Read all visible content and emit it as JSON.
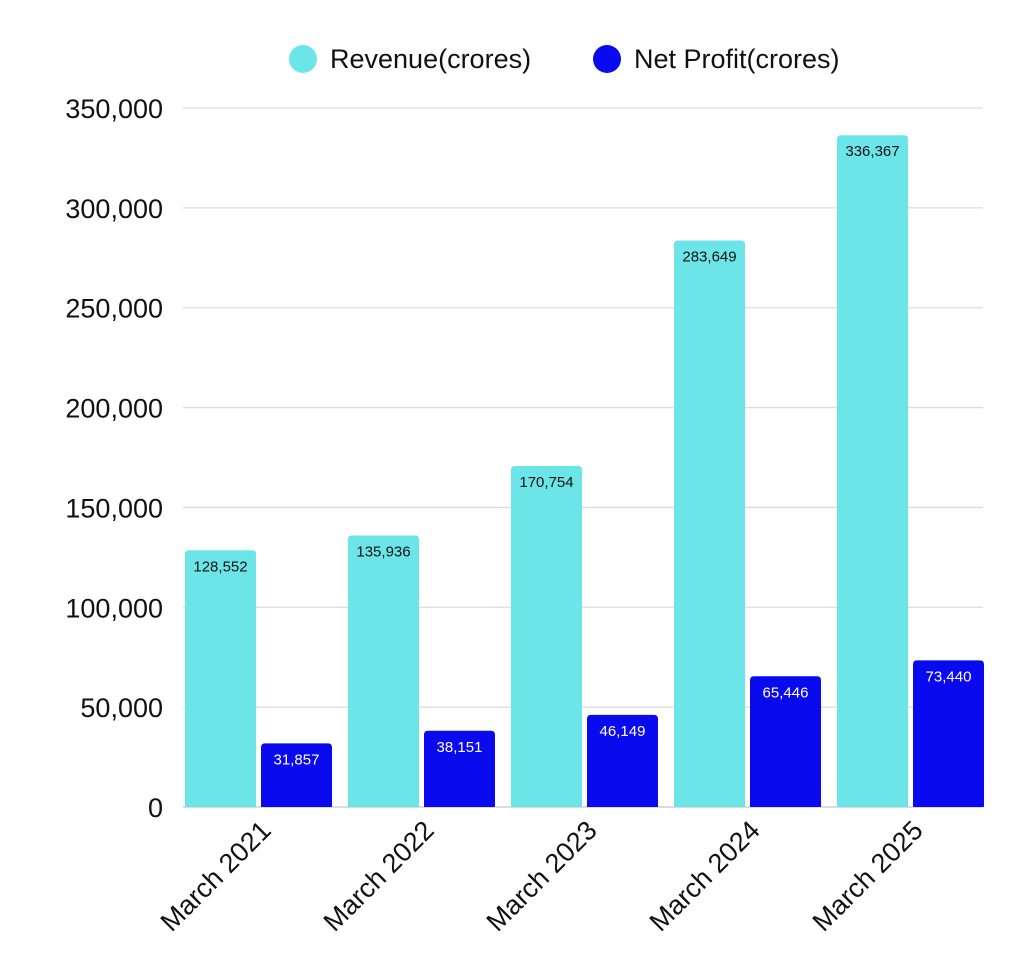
{
  "chart_data": {
    "type": "bar",
    "title": "",
    "xlabel": "",
    "ylabel": "",
    "categories": [
      "March 2021",
      "March 2022",
      "March 2023",
      "March 2024",
      "March 2025"
    ],
    "series": [
      {
        "name": "Revenue(crores)",
        "color": "#6CE5E8",
        "values": [
          128552,
          135936,
          170754,
          283649,
          336367
        ],
        "labels": [
          "128,552",
          "135,936",
          "170,754",
          "283,649",
          "336,367"
        ]
      },
      {
        "name": "Net Profit(crores)",
        "color": "#0A0AEE",
        "values": [
          31857,
          38151,
          46149,
          65446,
          73440
        ],
        "labels": [
          "31,857",
          "38,151",
          "46,149",
          "65,446",
          "73,440"
        ]
      }
    ],
    "ylim": [
      0,
      350000
    ],
    "yticks": [
      0,
      50000,
      100000,
      150000,
      200000,
      250000,
      300000,
      350000
    ],
    "ytick_labels": [
      "0",
      "50,000",
      "100,000",
      "150,000",
      "200,000",
      "250,000",
      "300,000",
      "350,000"
    ],
    "grid": true,
    "legend_position": "top"
  }
}
